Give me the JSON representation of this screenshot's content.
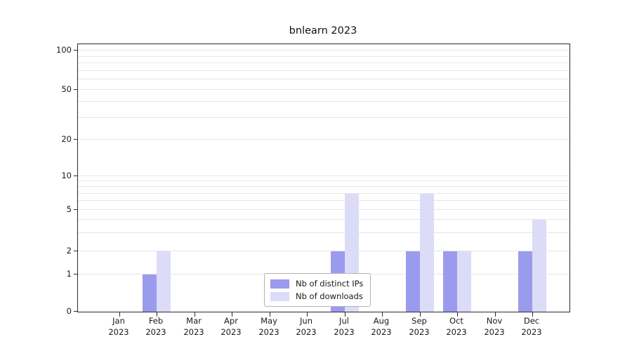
{
  "chart_data": {
    "type": "bar",
    "title": "bnlearn 2023",
    "categories": [
      "Jan",
      "Feb",
      "Mar",
      "Apr",
      "May",
      "Jun",
      "Jul",
      "Aug",
      "Sep",
      "Oct",
      "Nov",
      "Dec"
    ],
    "category_year": "2023",
    "series": [
      {
        "name": "Nb of distinct IPs",
        "color": "#9b9bee",
        "values": [
          0,
          1,
          0,
          0,
          0,
          0,
          2,
          0,
          2,
          2,
          0,
          2
        ]
      },
      {
        "name": "Nb of downloads",
        "color": "#dcdcf8",
        "values": [
          0,
          2,
          0,
          0,
          0,
          0,
          7,
          0,
          7,
          2,
          0,
          4
        ]
      }
    ],
    "xlabel": "",
    "ylabel": "",
    "y_ticks": [
      0,
      1,
      2,
      5,
      10,
      20,
      50,
      100
    ],
    "ylim": [
      0,
      110
    ],
    "y_scale": "symlog",
    "grid": true,
    "legend_position": "bottom-center"
  }
}
